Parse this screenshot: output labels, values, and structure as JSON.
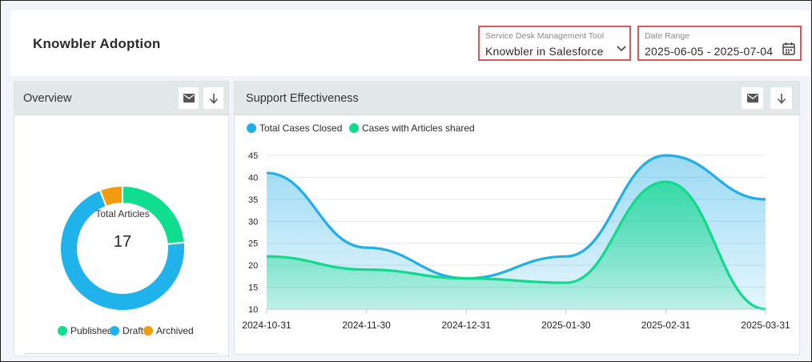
{
  "header": {
    "title": "Knowbler Adoption",
    "filters": {
      "tool": {
        "label": "Service Desk Management Tool",
        "value": "Knowbler in Salesforce"
      },
      "date": {
        "label": "Date Range",
        "value": "2025-06-05 - 2025-07-04"
      }
    }
  },
  "overview": {
    "title": "Overview",
    "icons": [
      "email-icon",
      "download-icon"
    ],
    "center_label": "Total Articles",
    "center_value": "17",
    "legend": [
      {
        "name": "Published",
        "color": "#10de8f"
      },
      {
        "name": "Draft",
        "color": "#20b2ea"
      },
      {
        "name": "Archived",
        "color": "#f39c12"
      }
    ]
  },
  "effectiveness": {
    "title": "Support Effectiveness",
    "icons": [
      "email-icon",
      "download-icon"
    ]
  },
  "chart_data": [
    {
      "type": "pie",
      "categories": [
        "Published",
        "Draft",
        "Archived"
      ],
      "values": [
        4,
        12,
        1
      ],
      "colors": [
        "#10de8f",
        "#20b2ea",
        "#f39c12"
      ],
      "legend": "bottom",
      "center_label": "Total Articles",
      "center_value": 17
    },
    {
      "type": "area",
      "x": [
        "2024-10-31",
        "2024-11-30",
        "2024-12-31",
        "2025-01-30",
        "2025-02-31",
        "2025-03-31"
      ],
      "series": [
        {
          "name": "Total Cases Closed",
          "color": "#22aee6",
          "values": [
            41,
            24,
            17,
            22,
            45,
            35
          ]
        },
        {
          "name": "Cases with Articles shared",
          "color": "#12d98c",
          "values": [
            22,
            19,
            17,
            16,
            39,
            10
          ]
        }
      ],
      "yticks": [
        10,
        15,
        20,
        25,
        30,
        35,
        40,
        45
      ],
      "ylim": [
        10,
        45
      ],
      "grid": true,
      "legend": "top-left"
    }
  ]
}
